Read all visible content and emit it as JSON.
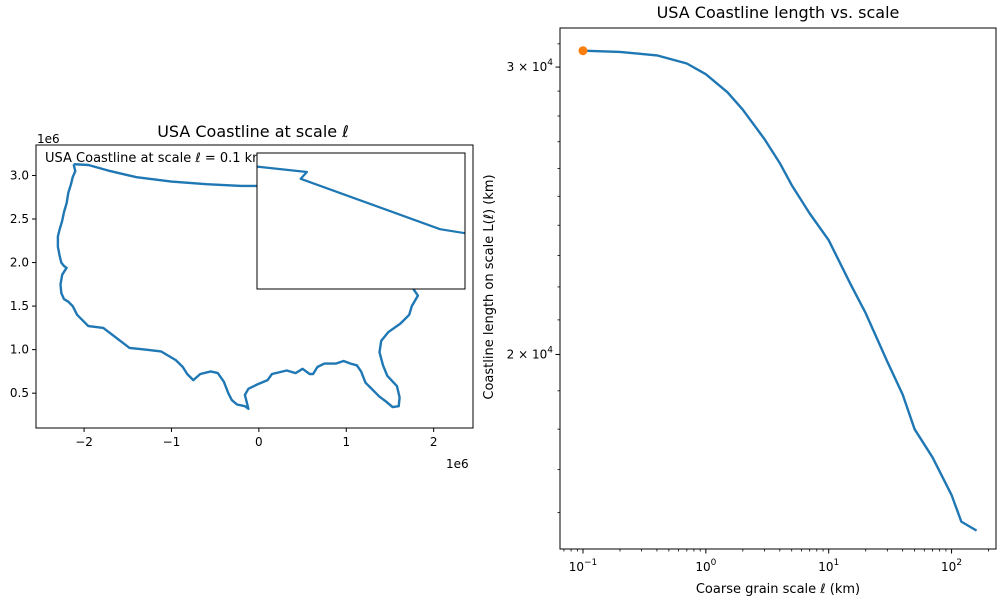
{
  "chart_data": [
    {
      "type": "line",
      "title": "USA Coastline at scale ℓ",
      "annotation": "USA Coastline at scale ℓ = 0.1 km",
      "x_offset_label": "1e6",
      "y_offset_label": "1e6",
      "xlim": [
        -2.55,
        2.45
      ],
      "ylim": [
        0.1,
        3.35
      ],
      "xticks": [
        -2,
        -1,
        0,
        1,
        2
      ],
      "xtick_labels": [
        "−2",
        "−1",
        "0",
        "1",
        "2"
      ],
      "yticks": [
        0.5,
        1.0,
        1.5,
        2.0,
        2.5,
        3.0
      ],
      "ytick_labels": [
        "0.5",
        "1.0",
        "1.5",
        "2.0",
        "2.5",
        "3.0"
      ],
      "outline": [
        [
          -2.12,
          3.13
        ],
        [
          -2.1,
          3.05
        ],
        [
          -2.13,
          2.98
        ],
        [
          -2.15,
          2.9
        ],
        [
          -2.18,
          2.8
        ],
        [
          -2.2,
          2.68
        ],
        [
          -2.23,
          2.58
        ],
        [
          -2.25,
          2.48
        ],
        [
          -2.28,
          2.38
        ],
        [
          -2.3,
          2.3
        ],
        [
          -2.3,
          2.18
        ],
        [
          -2.28,
          2.08
        ],
        [
          -2.26,
          2.0
        ],
        [
          -2.23,
          1.96
        ],
        [
          -2.2,
          1.94
        ],
        [
          -2.25,
          1.86
        ],
        [
          -2.27,
          1.75
        ],
        [
          -2.26,
          1.65
        ],
        [
          -2.23,
          1.58
        ],
        [
          -2.18,
          1.55
        ],
        [
          -2.13,
          1.5
        ],
        [
          -2.08,
          1.4
        ],
        [
          -2.0,
          1.32
        ],
        [
          -1.95,
          1.27
        ],
        [
          -1.78,
          1.25
        ],
        [
          -1.48,
          1.02
        ],
        [
          -1.3,
          1.0
        ],
        [
          -1.12,
          0.98
        ],
        [
          -0.95,
          0.88
        ],
        [
          -0.87,
          0.8
        ],
        [
          -0.82,
          0.72
        ],
        [
          -0.75,
          0.65
        ],
        [
          -0.67,
          0.72
        ],
        [
          -0.55,
          0.75
        ],
        [
          -0.47,
          0.73
        ],
        [
          -0.4,
          0.63
        ],
        [
          -0.35,
          0.5
        ],
        [
          -0.31,
          0.42
        ],
        [
          -0.25,
          0.37
        ],
        [
          -0.16,
          0.35
        ],
        [
          -0.12,
          0.32
        ],
        [
          -0.16,
          0.48
        ],
        [
          -0.12,
          0.55
        ],
        [
          -0.02,
          0.6
        ],
        [
          0.1,
          0.65
        ],
        [
          0.15,
          0.72
        ],
        [
          0.32,
          0.76
        ],
        [
          0.42,
          0.73
        ],
        [
          0.5,
          0.78
        ],
        [
          0.58,
          0.72
        ],
        [
          0.62,
          0.72
        ],
        [
          0.67,
          0.8
        ],
        [
          0.75,
          0.84
        ],
        [
          0.88,
          0.84
        ],
        [
          0.97,
          0.87
        ],
        [
          1.05,
          0.84
        ],
        [
          1.12,
          0.82
        ],
        [
          1.17,
          0.75
        ],
        [
          1.22,
          0.62
        ],
        [
          1.28,
          0.56
        ],
        [
          1.38,
          0.46
        ],
        [
          1.46,
          0.4
        ],
        [
          1.53,
          0.34
        ],
        [
          1.6,
          0.35
        ],
        [
          1.61,
          0.45
        ],
        [
          1.58,
          0.58
        ],
        [
          1.47,
          0.7
        ],
        [
          1.42,
          0.82
        ],
        [
          1.38,
          0.97
        ],
        [
          1.4,
          1.1
        ],
        [
          1.48,
          1.2
        ],
        [
          1.62,
          1.3
        ],
        [
          1.72,
          1.4
        ],
        [
          1.75,
          1.5
        ],
        [
          1.82,
          1.62
        ],
        [
          1.73,
          1.75
        ],
        [
          1.63,
          1.9
        ],
        [
          1.58,
          2.05
        ],
        [
          1.6,
          2.2
        ],
        [
          1.72,
          2.35
        ],
        [
          1.82,
          2.48
        ],
        [
          1.76,
          2.68
        ],
        [
          1.7,
          2.8
        ],
        [
          1.6,
          2.88
        ],
        [
          1.3,
          2.92
        ],
        [
          0.85,
          2.9
        ],
        [
          0.3,
          2.88
        ],
        [
          -0.2,
          2.88
        ],
        [
          -0.6,
          2.9
        ],
        [
          -1.0,
          2.93
        ],
        [
          -1.4,
          2.98
        ],
        [
          -1.7,
          3.05
        ],
        [
          -1.95,
          3.12
        ],
        [
          -2.12,
          3.13
        ]
      ],
      "inset": {
        "xlim": [
          0,
          1
        ],
        "ylim": [
          0,
          1
        ],
        "line": [
          [
            0.0,
            0.9
          ],
          [
            0.24,
            0.86
          ],
          [
            0.21,
            0.81
          ],
          [
            0.88,
            0.44
          ],
          [
            1.0,
            0.41
          ]
        ]
      }
    },
    {
      "type": "line",
      "title": "USA Coastline length vs. scale",
      "xlabel": "Coarse grain scale ℓ (km)",
      "ylabel": "Coastline length on scale L(ℓ) (km)",
      "xscale": "log",
      "yscale": "log",
      "xlim": [
        0.065,
        230
      ],
      "ylim": [
        15200,
        31700
      ],
      "xticks": [
        0.1,
        1,
        10,
        100
      ],
      "xtick_labels": [
        "10",
        "10",
        "10",
        "10"
      ],
      "xtick_exponents": [
        "−1",
        "0",
        "1",
        "2"
      ],
      "yticks": [
        20000,
        30000
      ],
      "ytick_labels": [
        "2 × 10",
        "3 × 10"
      ],
      "ytick_exponents": [
        "4",
        "4"
      ],
      "series": [
        {
          "color": "#1f77b4",
          "x": [
            0.1,
            0.2,
            0.4,
            0.7,
            1.0,
            1.5,
            2.0,
            3.0,
            4.0,
            5.0,
            7.0,
            10.0,
            15.0,
            20.0,
            30.0,
            40.0,
            50.0,
            70.0,
            100.0,
            120.0,
            160.0
          ],
          "y": [
            30700,
            30650,
            30500,
            30150,
            29700,
            28950,
            28250,
            27100,
            26200,
            25400,
            24400,
            23500,
            22100,
            21200,
            19800,
            18900,
            18000,
            17300,
            16400,
            15800,
            15600
          ]
        }
      ],
      "marker": {
        "x": 0.1,
        "y": 30700,
        "color": "#ff7f0e"
      }
    }
  ]
}
